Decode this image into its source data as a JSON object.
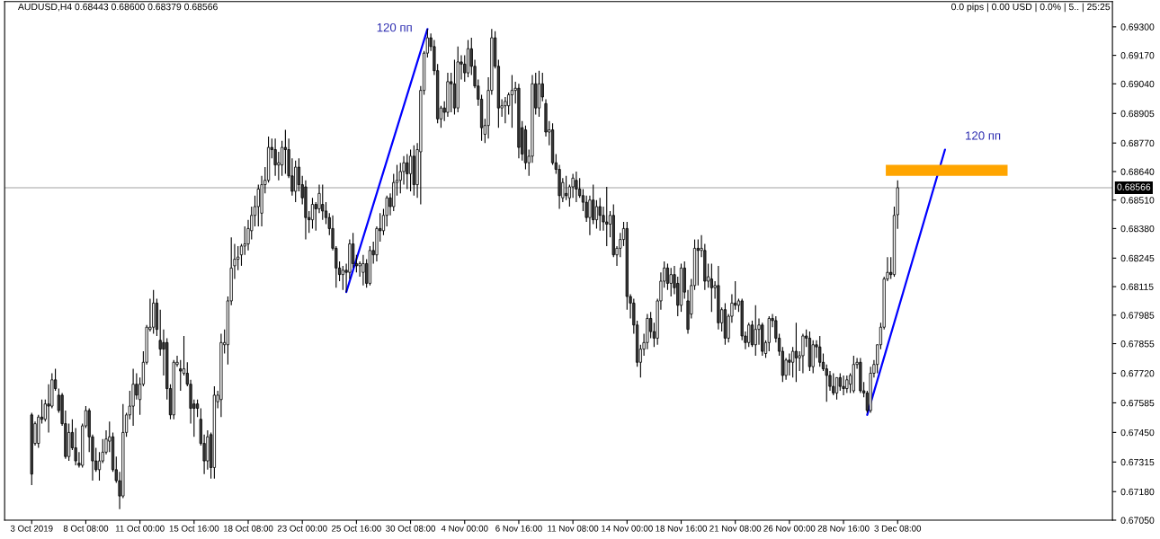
{
  "chart_data": {
    "type": "candlestick",
    "title": "AUDUSD,H4 0.68443 0.68600 0.68379 0.68566",
    "annotations": [
      "0.0 pips | 0.00 USD | 0.0% | 5.. | 25:25"
    ],
    "categories": [
      "3 Oct 2019",
      null,
      null,
      null,
      null,
      null,
      null,
      null,
      null,
      null,
      null,
      null,
      null,
      null,
      null,
      null,
      "8 Oct 08:00",
      null,
      null,
      null,
      null,
      null,
      null,
      null,
      null,
      null,
      null,
      null,
      null,
      null,
      null,
      null,
      "11 Oct 00:00",
      null,
      null,
      null,
      null,
      null,
      null,
      null,
      null,
      null,
      null,
      null,
      null,
      null,
      null,
      null,
      "15 Oct 16:00",
      null,
      null,
      null,
      null,
      null,
      null,
      null,
      null,
      null,
      null,
      null,
      null,
      null,
      null,
      null,
      "18 Oct 08:00",
      null,
      null,
      null,
      null,
      null,
      null,
      null,
      null,
      null,
      null,
      null,
      null,
      null,
      null,
      null,
      "23 Oct 00:00",
      null,
      null,
      null,
      null,
      null,
      null,
      null,
      null,
      null,
      null,
      null,
      null,
      null,
      null,
      null,
      "25 Oct 16:00",
      null,
      null,
      null,
      null,
      null,
      null,
      null,
      null,
      null,
      null,
      null,
      null,
      null,
      null,
      null,
      "30 Oct 08:00",
      null,
      null,
      null,
      null,
      null,
      null,
      null,
      null,
      null,
      null,
      null,
      null,
      null,
      null,
      null,
      "4 Nov 00:00",
      null,
      null,
      null,
      null,
      null,
      null,
      null,
      null,
      null,
      null,
      null,
      null,
      null,
      null,
      null,
      "6 Nov 16:00",
      null,
      null,
      null,
      null,
      null,
      null,
      null,
      null,
      null,
      null,
      null,
      null,
      null,
      null,
      null,
      "11 Nov 08:00",
      null,
      null,
      null,
      null,
      null,
      null,
      null,
      null,
      null,
      null,
      null,
      null,
      null,
      null,
      null,
      "14 Nov 00:00",
      null,
      null,
      null,
      null,
      null,
      null,
      null,
      null,
      null,
      null,
      null,
      null,
      null,
      null,
      null,
      "18 Nov 16:00",
      null,
      null,
      null,
      null,
      null,
      null,
      null,
      null,
      null,
      null,
      null,
      null,
      null,
      null,
      null,
      "21 Nov 08:00",
      null,
      null,
      null,
      null,
      null,
      null,
      null,
      null,
      null,
      null,
      null,
      null,
      null,
      null,
      null,
      "26 Nov 00:00",
      null,
      null,
      null,
      null,
      null,
      null,
      null,
      null,
      null,
      null,
      null,
      null,
      null,
      null,
      null,
      "28 Nov 16:00",
      null,
      null,
      null,
      null,
      null,
      null,
      null,
      null,
      null,
      null,
      null,
      null,
      null,
      null,
      null,
      "3 Dec 08:00",
      null,
      null,
      null,
      null,
      null,
      null,
      null,
      null,
      null,
      null,
      null,
      null,
      null,
      null,
      null,
      null,
      null,
      null,
      null,
      null,
      null,
      null,
      null,
      null,
      null,
      null,
      null,
      null,
      null,
      null,
      null,
      null,
      null,
      null,
      null,
      null,
      null,
      null,
      null,
      null,
      null,
      null,
      null,
      null,
      null,
      null,
      null,
      null,
      null,
      null,
      null,
      null,
      null,
      null,
      null,
      null,
      null,
      null,
      null,
      null,
      null,
      null,
      null
    ],
    "ohlc": [
      [
        0.6753,
        0.6754,
        0.6721,
        0.6726
      ],
      [
        0.674,
        0.675,
        0.6739,
        0.6749
      ],
      [
        0.674,
        0.6753,
        0.6738,
        0.6752
      ],
      [
        0.6752,
        0.676,
        0.6749,
        0.6751
      ],
      [
        0.6751,
        0.676,
        0.675,
        0.6758
      ],
      [
        0.6758,
        0.6767,
        0.6745,
        0.6757
      ],
      [
        0.6757,
        0.6772,
        0.6756,
        0.6769
      ],
      [
        0.6769,
        0.6774,
        0.6764,
        0.6765
      ],
      [
        0.6762,
        0.6765,
        0.6754,
        0.6755
      ],
      [
        0.6762,
        0.6763,
        0.6748,
        0.6749
      ],
      [
        0.6749,
        0.6755,
        0.6733,
        0.6734
      ],
      [
        0.6734,
        0.6749,
        0.6732,
        0.6745
      ],
      [
        0.6745,
        0.6751,
        0.6737,
        0.6738
      ],
      [
        0.6738,
        0.6747,
        0.673,
        0.6732
      ],
      [
        0.6731,
        0.6736,
        0.6729,
        0.673
      ],
      [
        0.673,
        0.6749,
        0.6729,
        0.6748
      ],
      [
        0.6748,
        0.6757,
        0.6747,
        0.6755
      ],
      [
        0.6755,
        0.6756,
        0.6736,
        0.6743
      ],
      [
        0.6743,
        0.6744,
        0.6723,
        0.6732
      ],
      [
        0.6732,
        0.6738,
        0.6727,
        0.6728
      ],
      [
        0.6728,
        0.6736,
        0.6723,
        0.6732
      ],
      [
        0.6732,
        0.6742,
        0.6731,
        0.6736
      ],
      [
        0.6736,
        0.6746,
        0.6735,
        0.6742
      ],
      [
        0.6741,
        0.675,
        0.6736,
        0.6743
      ],
      [
        0.6743,
        0.6745,
        0.6727,
        0.6728
      ],
      [
        0.6728,
        0.6734,
        0.6722,
        0.6723
      ],
      [
        0.6723,
        0.6727,
        0.671,
        0.6716
      ],
      [
        0.6716,
        0.6758,
        0.6715,
        0.6745
      ],
      [
        0.6745,
        0.6754,
        0.6743,
        0.6753
      ],
      [
        0.6753,
        0.6764,
        0.6751,
        0.6757
      ],
      [
        0.6757,
        0.6774,
        0.6748,
        0.6767
      ],
      [
        0.6767,
        0.6772,
        0.676,
        0.6762
      ],
      [
        0.676,
        0.677,
        0.6753,
        0.6767
      ],
      [
        0.6767,
        0.6782,
        0.6766,
        0.6777
      ],
      [
        0.6777,
        0.6794,
        0.6776,
        0.6793
      ],
      [
        0.6792,
        0.6806,
        0.6791,
        0.6793
      ],
      [
        0.6793,
        0.681,
        0.679,
        0.6804
      ],
      [
        0.6804,
        0.6806,
        0.6789,
        0.6792
      ],
      [
        0.6787,
        0.6801,
        0.678,
        0.6783
      ],
      [
        0.6786,
        0.6792,
        0.6771,
        0.6783
      ],
      [
        0.6786,
        0.6788,
        0.676,
        0.6765
      ],
      [
        0.6765,
        0.6767,
        0.6751,
        0.6753
      ],
      [
        0.6753,
        0.6778,
        0.6751,
        0.6777
      ],
      [
        0.6776,
        0.678,
        0.6775,
        0.6777
      ],
      [
        0.6774,
        0.6778,
        0.6764,
        0.6773
      ],
      [
        0.6772,
        0.6789,
        0.6771,
        0.6774
      ],
      [
        0.6772,
        0.6777,
        0.6766,
        0.6767
      ],
      [
        0.6767,
        0.6769,
        0.6749,
        0.6756
      ],
      [
        0.6758,
        0.676,
        0.6743,
        0.6756
      ],
      [
        0.6758,
        0.676,
        0.6752,
        0.6756
      ],
      [
        0.6751,
        0.6756,
        0.6739,
        0.674
      ],
      [
        0.674,
        0.6744,
        0.6726,
        0.6732
      ],
      [
        0.6732,
        0.6746,
        0.6728,
        0.6743
      ],
      [
        0.6744,
        0.6745,
        0.6724,
        0.6729
      ],
      [
        0.6729,
        0.6766,
        0.6724,
        0.6762
      ],
      [
        0.6759,
        0.6764,
        0.6756,
        0.6762
      ],
      [
        0.676,
        0.679,
        0.6752,
        0.6786
      ],
      [
        0.6785,
        0.6792,
        0.6781,
        0.6786
      ],
      [
        0.6785,
        0.6807,
        0.6776,
        0.6805
      ],
      [
        0.6805,
        0.6834,
        0.6803,
        0.682
      ],
      [
        0.6821,
        0.6831,
        0.6815,
        0.6824
      ],
      [
        0.6824,
        0.683,
        0.6819,
        0.6825
      ],
      [
        0.6826,
        0.6831,
        0.6821,
        0.683
      ],
      [
        0.683,
        0.6839,
        0.6826,
        0.6831
      ],
      [
        0.6831,
        0.6842,
        0.6828,
        0.6838
      ],
      [
        0.6837,
        0.6848,
        0.6833,
        0.6844
      ],
      [
        0.6844,
        0.6853,
        0.6839,
        0.6848
      ],
      [
        0.6848,
        0.6858,
        0.6839,
        0.6856
      ],
      [
        0.6845,
        0.6862,
        0.6839,
        0.6858
      ],
      [
        0.6858,
        0.6866,
        0.6854,
        0.686
      ],
      [
        0.686,
        0.688,
        0.6859,
        0.6875
      ],
      [
        0.6875,
        0.6879,
        0.687,
        0.6874
      ],
      [
        0.6874,
        0.6879,
        0.6862,
        0.6867
      ],
      [
        0.6867,
        0.6873,
        0.686,
        0.6868
      ],
      [
        0.6867,
        0.6878,
        0.6862,
        0.6875
      ],
      [
        0.6875,
        0.6883,
        0.6863,
        0.6874
      ],
      [
        0.6874,
        0.6879,
        0.6861,
        0.6862
      ],
      [
        0.6862,
        0.687,
        0.6853,
        0.6855
      ],
      [
        0.6855,
        0.6869,
        0.685,
        0.6866
      ],
      [
        0.6866,
        0.687,
        0.6855,
        0.6858
      ],
      [
        0.6858,
        0.6862,
        0.6849,
        0.6852
      ],
      [
        0.6857,
        0.686,
        0.6833,
        0.6843
      ],
      [
        0.6843,
        0.6846,
        0.6836,
        0.6842
      ],
      [
        0.6842,
        0.6852,
        0.6838,
        0.6849
      ],
      [
        0.6849,
        0.685,
        0.6837,
        0.6847
      ],
      [
        0.6847,
        0.6858,
        0.6845,
        0.6854
      ],
      [
        0.6849,
        0.6858,
        0.6842,
        0.6846
      ],
      [
        0.6846,
        0.685,
        0.684,
        0.6843
      ],
      [
        0.6843,
        0.6845,
        0.6835,
        0.6838
      ],
      [
        0.6838,
        0.6844,
        0.6828,
        0.6829
      ],
      [
        0.6829,
        0.683,
        0.6811,
        0.682
      ],
      [
        0.682,
        0.6823,
        0.6814,
        0.6817
      ],
      [
        0.6817,
        0.6821,
        0.681,
        0.6819
      ],
      [
        0.6819,
        0.6822,
        0.6809,
        0.6818
      ],
      [
        0.6818,
        0.6833,
        0.6815,
        0.6831
      ],
      [
        0.6831,
        0.6836,
        0.682,
        0.6822
      ],
      [
        0.6822,
        0.6826,
        0.6818,
        0.6821
      ],
      [
        0.6821,
        0.6823,
        0.6816,
        0.6822
      ],
      [
        0.6818,
        0.6826,
        0.6812,
        0.6822
      ],
      [
        0.6822,
        0.6824,
        0.6811,
        0.6813
      ],
      [
        0.6813,
        0.683,
        0.6812,
        0.6828
      ],
      [
        0.6828,
        0.6832,
        0.6822,
        0.6826
      ],
      [
        0.6826,
        0.6839,
        0.6823,
        0.6838
      ],
      [
        0.6838,
        0.6845,
        0.6832,
        0.6837
      ],
      [
        0.6837,
        0.6847,
        0.6835,
        0.6844
      ],
      [
        0.6844,
        0.6853,
        0.6839,
        0.6852
      ],
      [
        0.6852,
        0.6854,
        0.6844,
        0.6848
      ],
      [
        0.6848,
        0.6863,
        0.6846,
        0.6859
      ],
      [
        0.6859,
        0.6867,
        0.6853,
        0.686
      ],
      [
        0.686,
        0.6868,
        0.6854,
        0.6864
      ],
      [
        0.6864,
        0.6871,
        0.6858,
        0.6868
      ],
      [
        0.6868,
        0.6872,
        0.6856,
        0.6863
      ],
      [
        0.6863,
        0.6874,
        0.6855,
        0.6871
      ],
      [
        0.6871,
        0.6876,
        0.6853,
        0.6858
      ],
      [
        0.6858,
        0.6877,
        0.6852,
        0.6874
      ],
      [
        0.6873,
        0.6903,
        0.6849,
        0.6901
      ],
      [
        0.6901,
        0.6919,
        0.6899,
        0.6918
      ],
      [
        0.6918,
        0.6929,
        0.6916,
        0.6925
      ],
      [
        0.6925,
        0.6927,
        0.6919,
        0.6921
      ],
      [
        0.6921,
        0.6924,
        0.6908,
        0.691
      ],
      [
        0.691,
        0.6913,
        0.6886,
        0.6888
      ],
      [
        0.6888,
        0.6894,
        0.6884,
        0.6893
      ],
      [
        0.6893,
        0.6896,
        0.6887,
        0.6891
      ],
      [
        0.6891,
        0.6909,
        0.6889,
        0.6905
      ],
      [
        0.6905,
        0.6909,
        0.6891,
        0.6904
      ],
      [
        0.6904,
        0.6915,
        0.689,
        0.6893
      ],
      [
        0.6893,
        0.6921,
        0.6891,
        0.6914
      ],
      [
        0.6914,
        0.6917,
        0.6906,
        0.6913
      ],
      [
        0.6913,
        0.6917,
        0.6905,
        0.6909
      ],
      [
        0.6909,
        0.6924,
        0.6907,
        0.692
      ],
      [
        0.692,
        0.6925,
        0.6908,
        0.6912
      ],
      [
        0.6912,
        0.6915,
        0.6902,
        0.6903
      ],
      [
        0.6903,
        0.6906,
        0.6894,
        0.6897
      ],
      [
        0.6897,
        0.6899,
        0.6878,
        0.6884
      ],
      [
        0.6881,
        0.6888,
        0.6877,
        0.6885
      ],
      [
        0.6885,
        0.6907,
        0.6879,
        0.6901
      ],
      [
        0.6901,
        0.6929,
        0.6899,
        0.6925
      ],
      [
        0.6925,
        0.6928,
        0.6911,
        0.6912
      ],
      [
        0.6912,
        0.6915,
        0.6884,
        0.6893
      ],
      [
        0.6893,
        0.6897,
        0.6889,
        0.6894
      ],
      [
        0.6894,
        0.6898,
        0.6886,
        0.6896
      ],
      [
        0.6894,
        0.69,
        0.689,
        0.6899
      ],
      [
        0.6899,
        0.6908,
        0.6884,
        0.6901
      ],
      [
        0.6901,
        0.6905,
        0.6895,
        0.6902
      ],
      [
        0.6902,
        0.6904,
        0.687,
        0.6875
      ],
      [
        0.6884,
        0.6887,
        0.6869,
        0.6872
      ],
      [
        0.6883,
        0.6885,
        0.6865,
        0.6868
      ],
      [
        0.6868,
        0.6874,
        0.6862,
        0.6871
      ],
      [
        0.6871,
        0.6908,
        0.6868,
        0.6904
      ],
      [
        0.6904,
        0.6909,
        0.689,
        0.6893
      ],
      [
        0.6893,
        0.691,
        0.6889,
        0.6904
      ],
      [
        0.6904,
        0.6909,
        0.6896,
        0.6898
      ],
      [
        0.6895,
        0.6897,
        0.688,
        0.6882
      ],
      [
        0.6882,
        0.6887,
        0.6876,
        0.6883
      ],
      [
        0.6883,
        0.6886,
        0.6867,
        0.6868
      ],
      [
        0.6868,
        0.6872,
        0.6863,
        0.6865
      ],
      [
        0.6865,
        0.6867,
        0.6847,
        0.6853
      ],
      [
        0.6852,
        0.6861,
        0.685,
        0.6859
      ],
      [
        0.6854,
        0.6862,
        0.6851,
        0.6853
      ],
      [
        0.6852,
        0.6858,
        0.6848,
        0.6857
      ],
      [
        0.6857,
        0.6863,
        0.6852,
        0.6861
      ],
      [
        0.686,
        0.6864,
        0.685,
        0.6856
      ],
      [
        0.6856,
        0.6861,
        0.6852,
        0.6853
      ],
      [
        0.6853,
        0.6856,
        0.6846,
        0.685
      ],
      [
        0.685,
        0.6853,
        0.6841,
        0.6843
      ],
      [
        0.6843,
        0.6853,
        0.6835,
        0.6851
      ],
      [
        0.6851,
        0.6858,
        0.684,
        0.6842
      ],
      [
        0.6842,
        0.6851,
        0.6838,
        0.6848
      ],
      [
        0.6848,
        0.6852,
        0.6837,
        0.6844
      ],
      [
        0.6844,
        0.6848,
        0.6837,
        0.6841
      ],
      [
        0.6841,
        0.6857,
        0.683,
        0.684
      ],
      [
        0.684,
        0.6846,
        0.6834,
        0.6844
      ],
      [
        0.6844,
        0.6849,
        0.6825,
        0.6826
      ],
      [
        0.6826,
        0.683,
        0.6821,
        0.6829
      ],
      [
        0.6829,
        0.6836,
        0.6825,
        0.6833
      ],
      [
        0.6833,
        0.6841,
        0.683,
        0.6838
      ],
      [
        0.6838,
        0.6841,
        0.6801,
        0.6807
      ],
      [
        0.6807,
        0.6808,
        0.6797,
        0.6804
      ],
      [
        0.6804,
        0.6806,
        0.679,
        0.6794
      ],
      [
        0.6794,
        0.6796,
        0.6775,
        0.6777
      ],
      [
        0.6777,
        0.6785,
        0.677,
        0.6783
      ],
      [
        0.6783,
        0.679,
        0.678,
        0.6786
      ],
      [
        0.6786,
        0.6799,
        0.6783,
        0.6797
      ],
      [
        0.6797,
        0.68,
        0.6788,
        0.6791
      ],
      [
        0.6791,
        0.6795,
        0.6784,
        0.6788
      ],
      [
        0.6788,
        0.6806,
        0.6785,
        0.6805
      ],
      [
        0.6805,
        0.6818,
        0.6801,
        0.6814
      ],
      [
        0.6814,
        0.6823,
        0.6811,
        0.682
      ],
      [
        0.682,
        0.6822,
        0.681,
        0.6813
      ],
      [
        0.6813,
        0.682,
        0.6807,
        0.6817
      ],
      [
        0.6817,
        0.6821,
        0.6808,
        0.6811
      ],
      [
        0.6813,
        0.6816,
        0.6798,
        0.6803
      ],
      [
        0.6803,
        0.6822,
        0.68,
        0.682
      ],
      [
        0.682,
        0.6823,
        0.6806,
        0.6809
      ],
      [
        0.6805,
        0.681,
        0.679,
        0.6792
      ],
      [
        0.6799,
        0.6815,
        0.6797,
        0.6812
      ],
      [
        0.6812,
        0.6833,
        0.681,
        0.6829
      ],
      [
        0.6829,
        0.6833,
        0.6812,
        0.6828
      ],
      [
        0.6828,
        0.6835,
        0.6825,
        0.6829
      ],
      [
        0.6828,
        0.6831,
        0.681,
        0.6814
      ],
      [
        0.6814,
        0.6822,
        0.6811,
        0.6816
      ],
      [
        0.6815,
        0.6822,
        0.68,
        0.6811
      ],
      [
        0.6811,
        0.6814,
        0.6806,
        0.6812
      ],
      [
        0.6812,
        0.6821,
        0.6792,
        0.6795
      ],
      [
        0.6795,
        0.6802,
        0.6791,
        0.6801
      ],
      [
        0.6801,
        0.6804,
        0.6785,
        0.6788
      ],
      [
        0.6788,
        0.6799,
        0.6786,
        0.6798
      ],
      [
        0.6798,
        0.6808,
        0.6795,
        0.6804
      ],
      [
        0.6804,
        0.6814,
        0.6801,
        0.6803
      ],
      [
        0.6803,
        0.6806,
        0.68,
        0.6805
      ],
      [
        0.6805,
        0.6806,
        0.6787,
        0.6789
      ],
      [
        0.6789,
        0.6791,
        0.6783,
        0.6786
      ],
      [
        0.6786,
        0.6795,
        0.6784,
        0.6794
      ],
      [
        0.6794,
        0.6796,
        0.6784,
        0.6785
      ],
      [
        0.6785,
        0.6803,
        0.678,
        0.6792
      ],
      [
        0.6792,
        0.6797,
        0.6785,
        0.6794
      ],
      [
        0.6794,
        0.6795,
        0.678,
        0.6782
      ],
      [
        0.6781,
        0.6787,
        0.6779,
        0.6786
      ],
      [
        0.6786,
        0.6798,
        0.6782,
        0.6797
      ],
      [
        0.6797,
        0.6799,
        0.6793,
        0.6796
      ],
      [
        0.6796,
        0.6798,
        0.6786,
        0.6788
      ],
      [
        0.6788,
        0.679,
        0.678,
        0.6782
      ],
      [
        0.6782,
        0.6784,
        0.6768,
        0.6771
      ],
      [
        0.6771,
        0.6779,
        0.6769,
        0.6778
      ],
      [
        0.6778,
        0.6781,
        0.6771,
        0.6777
      ],
      [
        0.6777,
        0.6784,
        0.677,
        0.6782
      ],
      [
        0.6782,
        0.6795,
        0.6768,
        0.6779
      ],
      [
        0.6779,
        0.6782,
        0.6773,
        0.678
      ],
      [
        0.678,
        0.679,
        0.6772,
        0.6789
      ],
      [
        0.6789,
        0.6792,
        0.6784,
        0.6788
      ],
      [
        0.6788,
        0.6791,
        0.6773,
        0.6775
      ],
      [
        0.6775,
        0.6787,
        0.6772,
        0.6785
      ],
      [
        0.6785,
        0.6787,
        0.6779,
        0.6784
      ],
      [
        0.6784,
        0.6789,
        0.6775,
        0.6777
      ],
      [
        0.6777,
        0.6781,
        0.6773,
        0.6774
      ],
      [
        0.6774,
        0.6776,
        0.6759,
        0.6771
      ],
      [
        0.6771,
        0.6773,
        0.6764,
        0.6766
      ],
      [
        0.6766,
        0.6772,
        0.6762,
        0.6763
      ],
      [
        0.6763,
        0.677,
        0.676,
        0.677
      ],
      [
        0.677,
        0.6772,
        0.6764,
        0.6766
      ],
      [
        0.6766,
        0.6771,
        0.6762,
        0.6765
      ],
      [
        0.6765,
        0.6771,
        0.6763,
        0.6769
      ],
      [
        0.6767,
        0.6772,
        0.6763,
        0.6771
      ],
      [
        0.6764,
        0.678,
        0.6763,
        0.6776
      ],
      [
        0.6776,
        0.6779,
        0.6774,
        0.6777
      ],
      [
        0.6777,
        0.6779,
        0.6763,
        0.6764
      ],
      [
        0.6764,
        0.6768,
        0.6761,
        0.6763
      ],
      [
        0.6763,
        0.6764,
        0.6754,
        0.6755
      ],
      [
        0.6755,
        0.6775,
        0.6754,
        0.6772
      ],
      [
        0.6772,
        0.6778,
        0.677,
        0.6776
      ],
      [
        0.6776,
        0.6785,
        0.6772,
        0.6785
      ],
      [
        0.6785,
        0.6795,
        0.6783,
        0.6793
      ],
      [
        0.6793,
        0.6816,
        0.6792,
        0.6815
      ],
      [
        0.6815,
        0.6825,
        0.6814,
        0.6818
      ],
      [
        0.6818,
        0.6825,
        0.6815,
        0.6817
      ],
      [
        0.6817,
        0.6848,
        0.6816,
        0.6844
      ],
      [
        0.68443,
        0.686,
        0.68379,
        0.68566
      ],
      null,
      null,
      null,
      null,
      null,
      null,
      null,
      null,
      null,
      null,
      null,
      null,
      null,
      null,
      null,
      null,
      null,
      null,
      null,
      null,
      null,
      null,
      null,
      null,
      null,
      null,
      null,
      null,
      null,
      null,
      null,
      null,
      null,
      null,
      null,
      null,
      null,
      null,
      null,
      null,
      null,
      null,
      null,
      null,
      null,
      null,
      null,
      null,
      null,
      null,
      null,
      null,
      null,
      null,
      null,
      null,
      null,
      null,
      null,
      null,
      null,
      null,
      null
    ],
    "series": [
      {
        "type": "line",
        "name": "120 пп",
        "color": "#0000ff",
        "values": [
          null,
          null,
          null,
          null,
          null,
          null,
          null,
          null,
          null,
          null,
          null,
          null,
          null,
          null,
          null,
          null,
          null,
          null,
          null,
          null,
          null,
          null,
          null,
          null,
          null,
          null,
          null,
          null,
          null,
          null,
          null,
          null,
          null,
          null,
          null,
          null,
          null,
          null,
          null,
          null,
          null,
          null,
          null,
          null,
          null,
          null,
          null,
          null,
          null,
          null,
          null,
          null,
          null,
          null,
          null,
          null,
          null,
          null,
          null,
          null,
          null,
          null,
          null,
          null,
          null,
          null,
          null,
          null,
          null,
          null,
          null,
          null,
          null,
          null,
          null,
          null,
          null,
          null,
          null,
          null,
          null,
          null,
          null,
          null,
          null,
          null,
          null,
          null,
          null,
          null,
          null,
          null,
          null,
          0.6809,
          null,
          null,
          null,
          null,
          null,
          null,
          null,
          null,
          null,
          null,
          null,
          null,
          null,
          null,
          null,
          null,
          null,
          null,
          null,
          null,
          null,
          null,
          null,
          0.6929,
          null,
          null,
          null,
          null,
          null,
          null,
          null,
          null,
          null,
          null,
          null,
          null,
          null,
          null,
          null,
          null,
          null,
          null,
          null,
          null,
          null,
          null,
          null,
          null,
          null,
          null,
          null,
          null,
          null,
          null,
          null,
          null,
          null,
          null,
          null,
          null,
          null,
          null,
          null,
          null,
          null,
          null,
          null,
          null,
          null,
          null,
          null,
          null,
          null,
          null,
          null,
          null,
          null,
          null,
          null,
          null,
          null,
          null,
          null,
          null,
          null,
          null,
          null,
          null,
          null,
          null,
          null,
          null,
          null,
          null,
          null,
          null,
          null,
          null,
          null,
          null,
          null,
          null,
          null,
          null,
          null,
          null,
          null,
          null,
          null,
          null,
          null,
          null,
          null,
          null,
          null,
          null,
          null,
          null,
          null,
          null,
          null,
          null,
          null,
          null,
          null,
          null,
          null,
          null,
          null,
          null,
          null,
          null,
          null,
          null,
          null,
          null,
          null,
          null,
          null,
          null,
          null,
          null,
          null,
          null,
          null,
          null,
          null,
          null,
          null,
          null,
          null,
          null,
          null,
          null,
          null,
          null,
          null,
          null,
          null,
          null,
          null,
          null,
          null,
          null,
          null,
          null,
          null,
          null,
          null,
          null,
          null,
          null,
          null,
          null,
          null,
          null,
          null,
          null,
          null,
          null,
          null,
          null,
          null,
          null,
          null,
          null,
          null,
          null,
          null,
          null,
          null,
          null,
          null,
          null,
          null,
          null,
          null,
          null,
          null,
          null,
          null,
          null,
          null,
          null,
          null,
          null,
          null,
          null,
          null,
          null,
          null,
          null,
          null,
          null,
          null,
          null,
          null,
          null,
          null,
          null,
          null,
          null,
          null,
          null,
          null,
          null
        ]
      },
      {
        "type": "line",
        "name": "120 пп",
        "color": "#0000ff",
        "values": [
          null,
          null,
          null,
          null,
          null,
          null,
          null,
          null,
          null,
          null,
          null,
          null,
          null,
          null,
          null,
          null,
          null,
          null,
          null,
          null,
          null,
          null,
          null,
          null,
          null,
          null,
          null,
          null,
          null,
          null,
          null,
          null,
          null,
          null,
          null,
          null,
          null,
          null,
          null,
          null,
          null,
          null,
          null,
          null,
          null,
          null,
          null,
          null,
          null,
          null,
          null,
          null,
          null,
          null,
          null,
          null,
          null,
          null,
          null,
          null,
          null,
          null,
          null,
          null,
          null,
          null,
          null,
          null,
          null,
          null,
          null,
          null,
          null,
          null,
          null,
          null,
          null,
          null,
          null,
          null,
          null,
          null,
          null,
          null,
          null,
          null,
          null,
          null,
          null,
          null,
          null,
          null,
          null,
          null,
          null,
          null,
          null,
          null,
          null,
          null,
          null,
          null,
          null,
          null,
          null,
          null,
          null,
          null,
          null,
          null,
          null,
          null,
          null,
          null,
          null,
          null,
          null,
          null,
          null,
          null,
          null,
          null,
          null,
          null,
          null,
          null,
          null,
          null,
          null,
          null,
          null,
          null,
          null,
          null,
          null,
          null,
          null,
          null,
          null,
          null,
          null,
          null,
          null,
          null,
          null,
          null,
          null,
          null,
          null,
          null,
          null,
          null,
          null,
          null,
          null,
          null,
          null,
          null,
          null,
          null,
          null,
          null,
          null,
          null,
          null,
          null,
          null,
          null,
          null,
          null,
          null,
          null,
          null,
          null,
          null,
          null,
          null,
          null,
          null,
          null,
          null,
          null,
          null,
          null,
          null,
          null,
          null,
          null,
          null,
          null,
          null,
          null,
          null,
          null,
          null,
          null,
          null,
          null,
          null,
          null,
          null,
          null,
          null,
          null,
          null,
          null,
          null,
          null,
          null,
          null,
          null,
          null,
          null,
          null,
          null,
          null,
          null,
          null,
          null,
          null,
          null,
          null,
          null,
          null,
          null,
          null,
          null,
          null,
          null,
          null,
          null,
          null,
          null,
          null,
          null,
          null,
          null,
          null,
          null,
          null,
          null,
          null,
          null,
          null,
          null,
          null,
          null,
          0.6753,
          null,
          null,
          null,
          null,
          null,
          null,
          null,
          null,
          null,
          null,
          null,
          null,
          null,
          null,
          null,
          null,
          null,
          null,
          null,
          null,
          null,
          null,
          0.6874,
          null,
          null,
          null,
          null,
          null,
          null,
          null,
          null,
          null,
          null,
          null,
          null,
          null,
          null,
          null,
          null,
          null,
          null,
          null,
          null,
          null,
          null,
          null,
          null,
          null,
          null,
          null,
          null,
          null,
          null,
          null,
          null,
          null,
          null,
          null,
          null,
          null,
          null,
          null,
          null,
          null,
          null,
          null,
          null,
          null,
          null,
          null,
          null,
          null
        ]
      }
    ],
    "ylim": [
      0.6705,
      0.69415
    ],
    "yticks": [
      {
        "value": 0.693,
        "label": "0.69300"
      },
      {
        "value": 0.6917,
        "label": "0.69170"
      },
      {
        "value": 0.6904,
        "label": "0.69040"
      },
      {
        "value": 0.68905,
        "label": "0.68905"
      },
      {
        "value": 0.6877,
        "label": "0.68770"
      },
      {
        "value": 0.6864,
        "label": "0.68640"
      },
      {
        "value": 0.6851,
        "label": "0.68510"
      },
      {
        "value": 0.6838,
        "label": "0.68380"
      },
      {
        "value": 0.68245,
        "label": "0.68245"
      },
      {
        "value": 0.68115,
        "label": "0.68115"
      },
      {
        "value": 0.67985,
        "label": "0.67985"
      },
      {
        "value": 0.67855,
        "label": "0.67855"
      },
      {
        "value": 0.6772,
        "label": "0.67720"
      },
      {
        "value": 0.67585,
        "label": "0.67585"
      },
      {
        "value": 0.6745,
        "label": "0.67450"
      },
      {
        "value": 0.67315,
        "label": "0.67315"
      },
      {
        "value": 0.6718,
        "label": "0.67180"
      },
      {
        "value": 0.6705,
        "label": "0.67050"
      }
    ],
    "ref_lines": [
      {
        "axis": "y",
        "value": 0.68566,
        "label": "0.68566",
        "color": "#c0c0c0"
      }
    ],
    "bands": [
      {
        "axis": "y",
        "from": 0.6862,
        "to": 0.6867,
        "color": "#ffa500"
      }
    ]
  }
}
